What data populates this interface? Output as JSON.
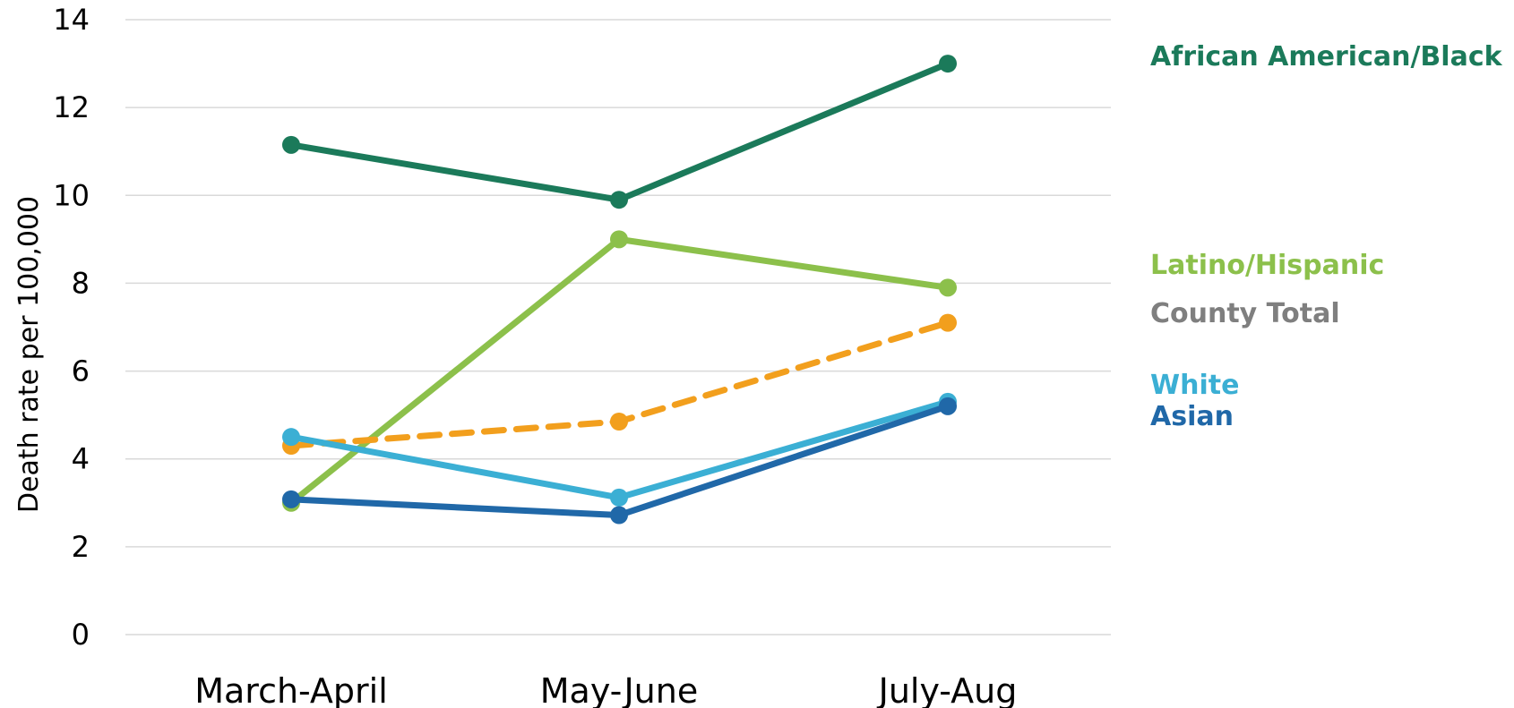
{
  "chart_data": {
    "type": "line",
    "title": "",
    "xlabel": "",
    "ylabel": "Death rate per 100,000",
    "categories": [
      "March-April",
      "May-June",
      "July-Aug"
    ],
    "ylim": [
      0,
      14
    ],
    "yticks": [
      0,
      2,
      4,
      6,
      8,
      10,
      12,
      14
    ],
    "grid": true,
    "legend_placement": "right, direct labels",
    "series": [
      {
        "name": "African American/Black",
        "values": [
          11.15,
          9.9,
          13.0
        ],
        "color": "#1b7a5a",
        "dashed": false
      },
      {
        "name": "Latino/Hispanic",
        "values": [
          3.0,
          9.0,
          7.9
        ],
        "color": "#8cc04b",
        "dashed": false
      },
      {
        "name": "County Total",
        "values": [
          4.3,
          4.85,
          7.1
        ],
        "color": "#f29f1d",
        "label_color": "#7f7f7f",
        "dashed": true
      },
      {
        "name": "White",
        "values": [
          4.5,
          3.12,
          5.3
        ],
        "color": "#3bafd4",
        "dashed": false
      },
      {
        "name": "Asian",
        "values": [
          3.08,
          2.72,
          5.2
        ],
        "color": "#2068a8",
        "dashed": false
      }
    ]
  }
}
